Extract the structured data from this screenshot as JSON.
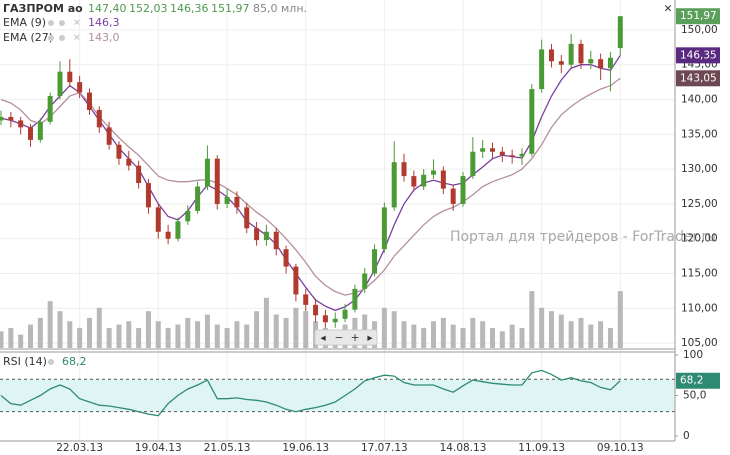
{
  "chart_data": {
    "type": "candlestick",
    "title": "ГАЗПРОМ ао",
    "header_ohlc": [
      {
        "value": 147.4,
        "label": "147,40"
      },
      {
        "value": 152.03,
        "label": "152,03"
      },
      {
        "value": 146.36,
        "label": "146,36"
      },
      {
        "value": 151.97,
        "label": "151,97"
      }
    ],
    "header_volume": {
      "value": 85.0,
      "label": "85,0 млн."
    },
    "header_color": "#4f9a4f",
    "close_marker": {
      "value": 151.97,
      "label": "151,97"
    },
    "close_marker_color": "#5aa05a",
    "categories": [
      null,
      null,
      null,
      null,
      null,
      null,
      null,
      null,
      "22.03.13",
      null,
      null,
      null,
      null,
      null,
      null,
      null,
      "19.04.13",
      null,
      null,
      null,
      null,
      null,
      null,
      "21.05.13",
      null,
      null,
      null,
      null,
      null,
      null,
      null,
      "19.06.13",
      null,
      null,
      null,
      null,
      null,
      null,
      null,
      "17.07.13",
      null,
      null,
      null,
      null,
      null,
      null,
      null,
      "14.08.13",
      null,
      null,
      null,
      null,
      null,
      null,
      null,
      "11.09.13",
      null,
      null,
      null,
      null,
      null,
      null,
      null,
      "09.10.13"
    ],
    "open": [
      137.0,
      137.5,
      137.0,
      136.0,
      134.2,
      136.8,
      140.5,
      144.0,
      142.5,
      141.0,
      138.5,
      136.0,
      133.5,
      131.5,
      130.5,
      128.0,
      124.5,
      121.0,
      120.0,
      122.5,
      124.0,
      127.5,
      131.5,
      125.0,
      126.0,
      124.5,
      121.5,
      119.8,
      121.0,
      118.5,
      116.0,
      112.0,
      110.5,
      109.0,
      108.0,
      108.5,
      109.8,
      112.8,
      115.0,
      118.5,
      124.5,
      131.0,
      129.0,
      127.5,
      129.2,
      129.8,
      127.2,
      125.0,
      129.0,
      132.5,
      133.0,
      132.5,
      132.0,
      131.8,
      132.2,
      141.5,
      147.2,
      145.5,
      145.0,
      148.0,
      145.2,
      145.8,
      144.5,
      147.4
    ],
    "high": [
      138.4,
      138.2,
      137.5,
      136.5,
      137.3,
      141.0,
      145.5,
      145.8,
      143.4,
      141.6,
      139.0,
      136.8,
      134.0,
      132.6,
      131.2,
      128.6,
      125.0,
      122.0,
      123.0,
      124.8,
      128.2,
      133.4,
      132.0,
      127.2,
      126.8,
      125.2,
      122.4,
      122.0,
      121.6,
      119.0,
      116.4,
      112.8,
      111.4,
      109.8,
      109.4,
      110.6,
      113.4,
      115.8,
      119.2,
      125.2,
      134.0,
      132.2,
      129.8,
      130.0,
      131.4,
      130.4,
      127.8,
      129.6,
      134.6,
      134.2,
      133.8,
      133.2,
      132.8,
      133.0,
      142.2,
      148.6,
      148.0,
      146.4,
      149.4,
      148.6,
      147.0,
      146.6,
      146.8,
      152.03
    ],
    "low": [
      136.3,
      136.0,
      135.0,
      133.2,
      133.8,
      136.4,
      140.0,
      141.8,
      140.2,
      137.8,
      135.2,
      132.8,
      130.6,
      129.8,
      127.2,
      123.6,
      120.0,
      119.2,
      119.6,
      122.0,
      123.6,
      127.0,
      124.2,
      124.4,
      123.6,
      120.8,
      119.0,
      119.0,
      117.6,
      115.0,
      111.0,
      109.6,
      108.0,
      107.2,
      107.2,
      108.0,
      109.4,
      112.2,
      114.6,
      118.0,
      124.0,
      128.2,
      126.8,
      127.0,
      128.6,
      126.4,
      124.0,
      124.6,
      128.6,
      131.6,
      131.6,
      131.0,
      130.8,
      130.6,
      131.8,
      141.0,
      144.6,
      143.8,
      144.6,
      144.4,
      144.4,
      142.8,
      141.2,
      146.36
    ],
    "close": [
      137.5,
      137.0,
      136.0,
      134.2,
      136.8,
      140.5,
      144.0,
      142.5,
      141.0,
      138.5,
      136.0,
      133.5,
      131.5,
      130.5,
      128.0,
      124.5,
      121.0,
      120.0,
      122.5,
      124.0,
      127.5,
      131.5,
      125.0,
      126.0,
      124.5,
      121.5,
      119.8,
      121.0,
      118.5,
      116.0,
      112.0,
      110.5,
      109.0,
      108.0,
      108.5,
      109.8,
      112.8,
      115.0,
      118.5,
      124.5,
      131.0,
      129.0,
      127.5,
      129.2,
      129.8,
      127.2,
      125.0,
      129.0,
      132.5,
      133.0,
      132.5,
      132.0,
      131.8,
      132.2,
      141.5,
      147.2,
      145.5,
      145.0,
      148.0,
      145.2,
      145.8,
      144.5,
      146.0,
      151.97
    ],
    "up_color": "#4a9a36",
    "down_color": "#b03a2e",
    "volume": {
      "color": "#b8b8b8",
      "ylim": [
        0,
        520
      ],
      "values": [
        25,
        30,
        20,
        35,
        45,
        70,
        55,
        40,
        30,
        45,
        60,
        30,
        35,
        40,
        30,
        55,
        40,
        30,
        35,
        45,
        40,
        50,
        35,
        30,
        40,
        35,
        55,
        75,
        50,
        45,
        60,
        55,
        40,
        30,
        25,
        35,
        45,
        50,
        40,
        60,
        55,
        40,
        35,
        30,
        40,
        45,
        35,
        30,
        45,
        40,
        30,
        25,
        35,
        30,
        85,
        60,
        55,
        50,
        40,
        45,
        35,
        40,
        30,
        85
      ]
    },
    "ylim": [
      104.3,
      154.3
    ],
    "yticks": [
      {
        "value": 105,
        "label": "105,00"
      },
      {
        "value": 110,
        "label": "110,00"
      },
      {
        "value": 115,
        "label": "115,00"
      },
      {
        "value": 120,
        "label": "120,00"
      },
      {
        "value": 125,
        "label": "125,00"
      },
      {
        "value": 130,
        "label": "130,00"
      },
      {
        "value": 135,
        "label": "135,00"
      },
      {
        "value": 140,
        "label": "140,00"
      },
      {
        "value": 145,
        "label": "145,00"
      },
      {
        "value": 150,
        "label": "150,00"
      }
    ],
    "grid": true,
    "overlays": [
      {
        "name": "EMA (9)",
        "color": "#7b3f9e",
        "legend_value": {
          "value": 146.3,
          "label": "146,3"
        },
        "marker": {
          "value": 146.35,
          "label": "146,35"
        },
        "marker_color": "#5a2a80",
        "values": [
          137.3,
          137,
          136.5,
          135.9,
          137,
          139,
          140.5,
          142,
          141,
          139,
          137,
          135,
          133,
          131.5,
          130,
          127.5,
          125,
          123.2,
          122.7,
          124,
          126,
          127.7,
          127,
          126,
          124.5,
          122.5,
          121.5,
          120.5,
          119.2,
          117,
          115,
          113,
          111.2,
          110.3,
          109.7,
          110.2,
          111.2,
          113,
          115.5,
          118.5,
          122,
          125,
          127,
          128,
          128.4,
          128,
          127.7,
          128,
          129.2,
          130.3,
          131.5,
          132,
          131.8,
          131.6,
          134,
          137.5,
          140.5,
          142.8,
          144.5,
          145,
          145,
          144.5,
          144.2,
          146.35
        ]
      },
      {
        "name": "EMA (27)",
        "color": "#b4909e",
        "legend_value": {
          "value": 143.0,
          "label": "143,0"
        },
        "marker": {
          "value": 143.05,
          "label": "143,05"
        },
        "marker_color": "#6d4852",
        "values": [
          140,
          139.5,
          138.5,
          137,
          136.5,
          137.5,
          139,
          140.5,
          141,
          139.5,
          137.5,
          136,
          134.5,
          133.2,
          132,
          130.5,
          129,
          128.4,
          128.2,
          128.2,
          128.4,
          128.5,
          128,
          127.2,
          126.3,
          125,
          123.8,
          122.8,
          121.5,
          120,
          118.4,
          116.6,
          114.6,
          113.3,
          112.4,
          111.9,
          112.2,
          112.8,
          114,
          115.5,
          117.5,
          119,
          120.5,
          122,
          123.2,
          124,
          124.5,
          125.3,
          126.3,
          127.5,
          128.2,
          128.7,
          129.2,
          130,
          131.5,
          133.5,
          136,
          137.8,
          139,
          140,
          140.8,
          141.5,
          142,
          143.05
        ]
      }
    ],
    "watermark": "Портал для трейдеров - ForTrader.ru",
    "rsi": {
      "name": "RSI (14)",
      "legend_value": {
        "value": 68.2,
        "label": "68,2"
      },
      "marker": {
        "value": 68.2,
        "label": "68,2"
      },
      "color": "#2f8a73",
      "band_color": "#dff5f3",
      "ylim": [
        -6.2,
        103.7
      ],
      "yticks": [
        100,
        {
          "value": 50,
          "label": "50,0"
        },
        0
      ],
      "levels": [
        70,
        30
      ],
      "values": [
        50,
        40,
        38,
        44,
        50,
        58,
        63,
        58,
        46,
        42,
        38,
        37,
        35,
        33,
        30,
        27,
        25,
        40,
        50,
        58,
        63,
        69,
        46,
        46,
        47,
        45,
        44,
        42,
        38,
        33,
        30,
        33,
        35,
        38,
        42,
        50,
        58,
        68,
        72,
        75,
        74,
        66,
        63,
        63,
        63,
        58,
        54,
        62,
        69,
        67,
        65,
        64,
        63,
        63,
        78,
        81,
        76,
        69,
        72,
        68,
        66,
        60,
        57,
        68.2
      ]
    }
  }
}
